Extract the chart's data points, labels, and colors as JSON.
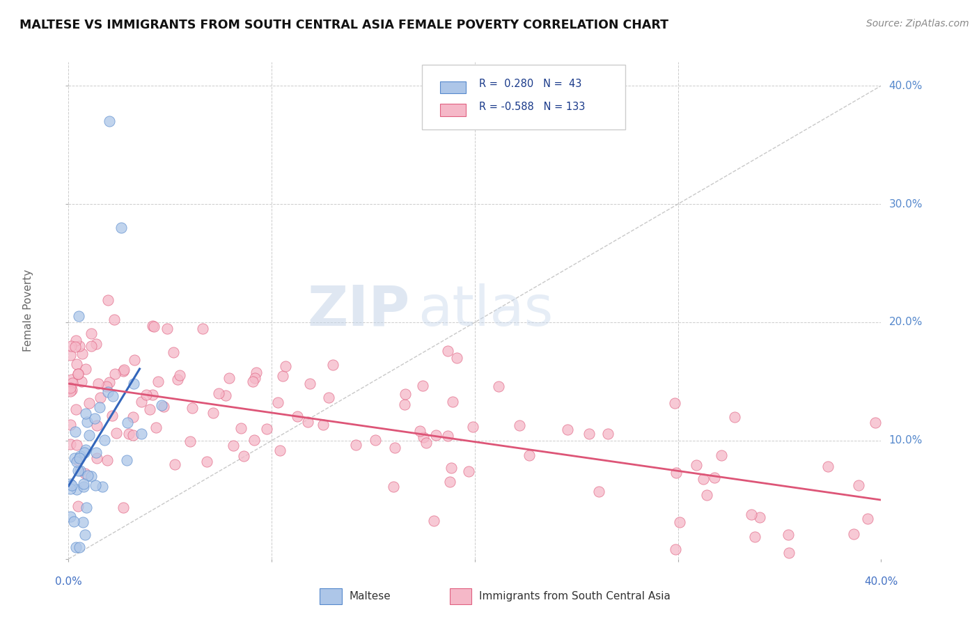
{
  "title": "MALTESE VS IMMIGRANTS FROM SOUTH CENTRAL ASIA FEMALE POVERTY CORRELATION CHART",
  "source": "Source: ZipAtlas.com",
  "ylabel": "Female Poverty",
  "color_maltese_fill": "#adc6e8",
  "color_maltese_edge": "#5588cc",
  "color_immigrants_fill": "#f5b8c8",
  "color_immigrants_edge": "#e06080",
  "color_maltese_line": "#3366bb",
  "color_immigrants_line": "#dd5577",
  "color_diagonal": "#bbbbbb",
  "color_axis_labels": "#4472c4",
  "color_right_labels": "#5588cc",
  "background_color": "#ffffff",
  "xlim": [
    0.0,
    0.4
  ],
  "ylim": [
    0.0,
    0.42
  ],
  "grid_color": "#cccccc",
  "legend_text_color": "#1a3a8a",
  "source_color": "#888888",
  "ylabel_color": "#666666"
}
